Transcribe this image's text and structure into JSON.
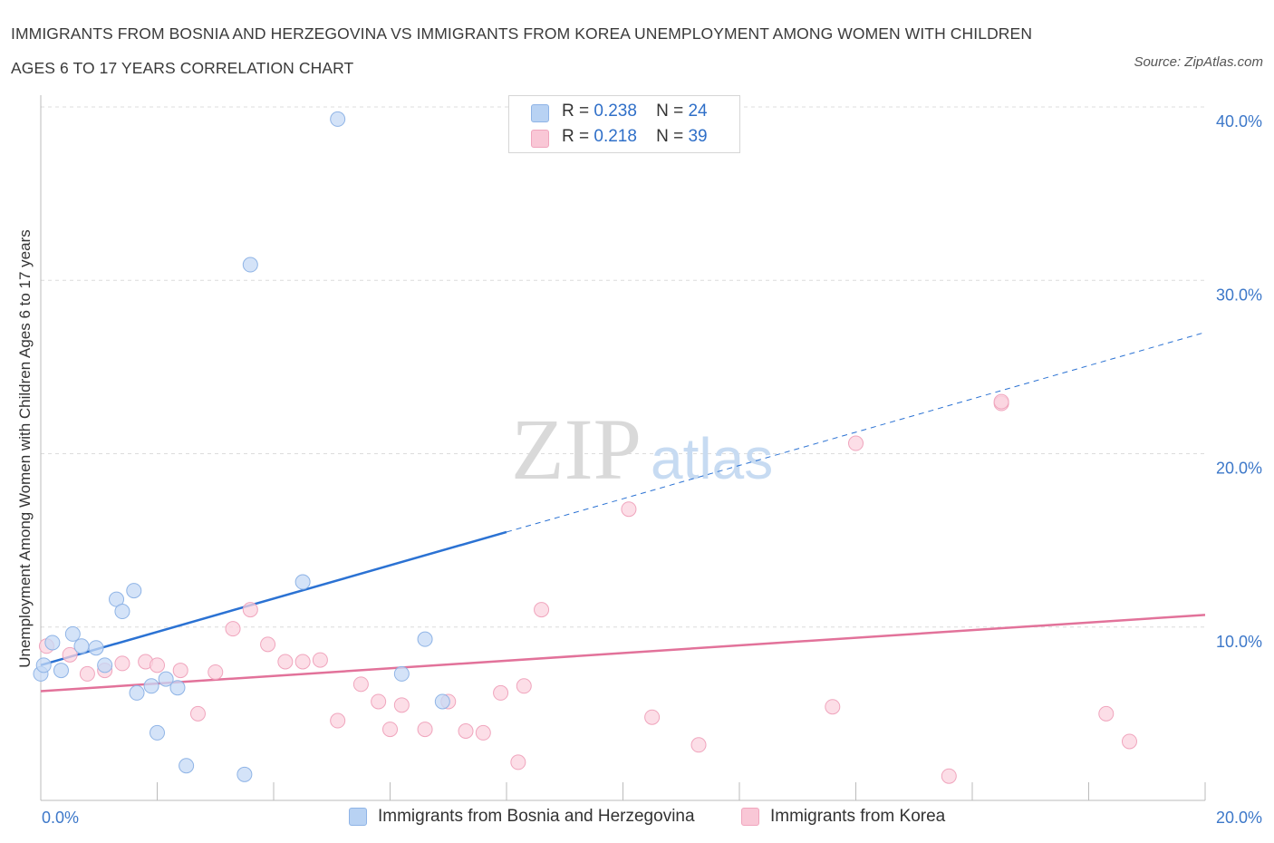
{
  "title": "IMMIGRANTS FROM BOSNIA AND HERZEGOVINA VS IMMIGRANTS FROM KOREA UNEMPLOYMENT AMONG WOMEN WITH CHILDREN AGES 6 TO 17 YEARS CORRELATION CHART",
  "source": "Source: ZipAtlas.com",
  "watermark": {
    "zip": "ZIP",
    "atlas": "atlas"
  },
  "legend": {
    "rows": [
      {
        "r_label": "R =",
        "r_value": "0.238",
        "n_label": "N =",
        "n_value": "24",
        "color": "#b8d2f3"
      },
      {
        "r_label": "R =",
        "r_value": "0.218",
        "n_label": "N =",
        "n_value": "39",
        "color": "#f9c7d6"
      }
    ]
  },
  "bottom_legend": [
    {
      "label": "Immigrants from Bosnia and Herzegovina",
      "color": "#b8d2f3"
    },
    {
      "label": "Immigrants from Korea",
      "color": "#f9c7d6"
    }
  ],
  "colors": {
    "blue_point_fill": "#c5daf5",
    "blue_point_stroke": "#8fb4e6",
    "blue_line": "#2b72d3",
    "pink_point_fill": "#fbd3df",
    "pink_point_stroke": "#f0a5bd",
    "pink_line": "#e2729a",
    "grid": "#dcdcdc",
    "tick_text": "#3d78c9"
  },
  "chart_data": {
    "type": "scatter",
    "title": "IMMIGRANTS FROM BOSNIA AND HERZEGOVINA VS IMMIGRANTS FROM KOREA UNEMPLOYMENT AMONG WOMEN WITH CHILDREN AGES 6 TO 17 YEARS CORRELATION CHART",
    "xlabel": "",
    "ylabel": "Unemployment Among Women with Children Ages 6 to 17 years",
    "xlim": [
      0,
      20
    ],
    "ylim": [
      0,
      40
    ],
    "x_tick_labels": [
      "0.0%",
      "20.0%"
    ],
    "y_ticks": [
      10,
      20,
      30,
      40
    ],
    "y_tick_labels": [
      "10.0%",
      "20.0%",
      "30.0%",
      "40.0%"
    ],
    "grid": true,
    "series": [
      {
        "name": "Immigrants from Bosnia and Herzegovina",
        "R": 0.238,
        "N": 24,
        "points": [
          [
            0.0,
            7.3
          ],
          [
            0.2,
            9.1
          ],
          [
            0.35,
            7.5
          ],
          [
            0.55,
            9.6
          ],
          [
            0.7,
            8.9
          ],
          [
            0.95,
            8.8
          ],
          [
            1.1,
            7.8
          ],
          [
            1.3,
            11.6
          ],
          [
            1.4,
            10.9
          ],
          [
            1.6,
            12.1
          ],
          [
            1.65,
            6.2
          ],
          [
            1.9,
            6.6
          ],
          [
            2.0,
            3.9
          ],
          [
            2.15,
            7.0
          ],
          [
            2.35,
            6.5
          ],
          [
            2.5,
            2.0
          ],
          [
            3.5,
            1.5
          ],
          [
            3.6,
            30.9
          ],
          [
            4.5,
            12.6
          ],
          [
            5.1,
            39.3
          ],
          [
            6.2,
            7.3
          ],
          [
            6.6,
            9.3
          ],
          [
            6.9,
            5.7
          ],
          [
            0.05,
            7.8
          ]
        ],
        "trend": {
          "x0": 0,
          "y0": 7.8,
          "x1": 20,
          "y1": 27.0,
          "solid_until_x": 8.0
        }
      },
      {
        "name": "Immigrants from Korea",
        "R": 0.218,
        "N": 39,
        "points": [
          [
            0.1,
            8.9
          ],
          [
            0.5,
            8.4
          ],
          [
            0.8,
            7.3
          ],
          [
            1.1,
            7.5
          ],
          [
            1.4,
            7.9
          ],
          [
            1.8,
            8.0
          ],
          [
            2.0,
            7.8
          ],
          [
            2.4,
            7.5
          ],
          [
            2.7,
            5.0
          ],
          [
            3.0,
            7.4
          ],
          [
            3.3,
            9.9
          ],
          [
            3.6,
            11.0
          ],
          [
            3.9,
            9.0
          ],
          [
            4.2,
            8.0
          ],
          [
            4.5,
            8.0
          ],
          [
            4.8,
            8.1
          ],
          [
            5.1,
            4.6
          ],
          [
            5.5,
            6.7
          ],
          [
            5.8,
            5.7
          ],
          [
            6.0,
            4.1
          ],
          [
            6.2,
            5.5
          ],
          [
            6.6,
            4.1
          ],
          [
            7.0,
            5.7
          ],
          [
            7.3,
            4.0
          ],
          [
            7.6,
            3.9
          ],
          [
            7.9,
            6.2
          ],
          [
            8.2,
            2.2
          ],
          [
            8.3,
            6.6
          ],
          [
            8.6,
            11.0
          ],
          [
            10.1,
            16.8
          ],
          [
            10.5,
            4.8
          ],
          [
            11.3,
            3.2
          ],
          [
            13.6,
            5.4
          ],
          [
            14.0,
            20.6
          ],
          [
            15.6,
            1.4
          ],
          [
            16.5,
            22.9
          ],
          [
            16.5,
            23.0
          ],
          [
            18.3,
            5.0
          ],
          [
            18.7,
            3.4
          ]
        ],
        "trend": {
          "x0": 0,
          "y0": 6.3,
          "x1": 20,
          "y1": 10.7
        }
      }
    ]
  }
}
